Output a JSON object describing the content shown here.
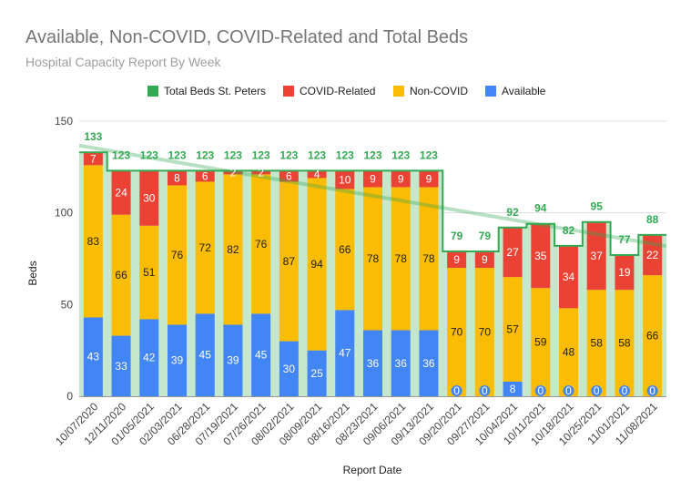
{
  "chart_data": {
    "type": "bar",
    "title": "Available, Non-COVID, COVID-Related and Total Beds",
    "subtitle": "Hospital Capacity Report By Week",
    "xlabel": "Report Date",
    "ylabel": "Beds",
    "ylim": [
      0,
      150
    ],
    "yticks": [
      0,
      50,
      100,
      150
    ],
    "grid": true,
    "legend_position": "top",
    "categories": [
      "10/07/2020",
      "12/11/2020",
      "01/05/2021",
      "02/03/2021",
      "06/28/2021",
      "07/19/2021",
      "07/26/2021",
      "08/02/2021",
      "08/09/2021",
      "08/16/2021",
      "08/23/2021",
      "09/06/2021",
      "09/13/2021",
      "09/20/2021",
      "09/27/2021",
      "10/04/2021",
      "10/11/2021",
      "10/18/2021",
      "10/25/2021",
      "11/01/2021",
      "11/08/2021"
    ],
    "series": [
      {
        "name": "Available",
        "color": "#4285f4",
        "values": [
          43,
          33,
          42,
          39,
          45,
          39,
          45,
          30,
          25,
          47,
          36,
          36,
          36,
          0,
          0,
          8,
          0,
          0,
          0,
          0,
          0
        ]
      },
      {
        "name": "Non-COVID",
        "color": "#fbbc04",
        "values": [
          83,
          66,
          51,
          76,
          72,
          82,
          76,
          87,
          94,
          66,
          78,
          78,
          78,
          70,
          70,
          57,
          59,
          48,
          58,
          58,
          66
        ]
      },
      {
        "name": "COVID-Related",
        "color": "#ea4335",
        "values": [
          7,
          24,
          30,
          8,
          6,
          2,
          2,
          6,
          4,
          10,
          9,
          9,
          9,
          9,
          9,
          27,
          35,
          34,
          37,
          19,
          22
        ]
      }
    ],
    "totals": {
      "name": "Total Beds St. Peters",
      "color": "#34a853",
      "values": [
        133,
        123,
        123,
        123,
        123,
        123,
        123,
        123,
        123,
        123,
        123,
        123,
        123,
        79,
        79,
        92,
        94,
        82,
        95,
        77,
        88
      ]
    },
    "legend": [
      "Total Beds St. Peters",
      "COVID-Related",
      "Non-COVID",
      "Available"
    ]
  }
}
